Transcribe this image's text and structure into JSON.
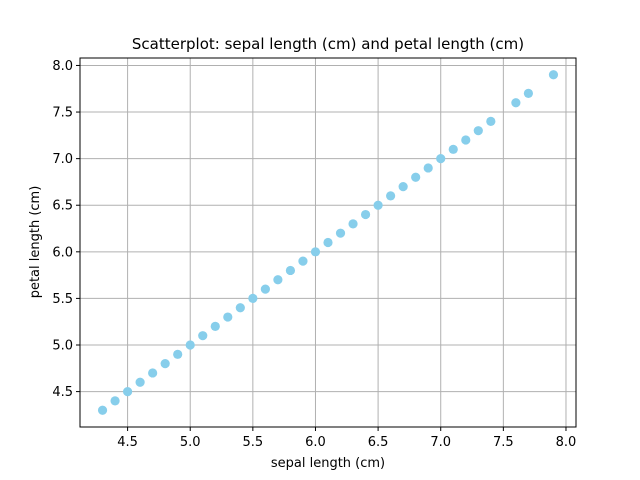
{
  "chart_data": {
    "type": "scatter",
    "title": "Scatterplot: sepal length (cm) and petal length (cm)",
    "xlabel": "sepal length (cm)",
    "ylabel": "petal length (cm)",
    "xlim": [
      4.12,
      8.08
    ],
    "ylim": [
      4.12,
      8.08
    ],
    "x_ticks": [
      4.5,
      5.0,
      5.5,
      6.0,
      6.5,
      7.0,
      7.5,
      8.0
    ],
    "y_ticks": [
      4.5,
      5.0,
      5.5,
      6.0,
      6.5,
      7.0,
      7.5,
      8.0
    ],
    "x_tick_labels": [
      "4.5",
      "5.0",
      "5.5",
      "6.0",
      "6.5",
      "7.0",
      "7.5",
      "8.0"
    ],
    "y_tick_labels": [
      "4.5",
      "5.0",
      "5.5",
      "6.0",
      "6.5",
      "7.0",
      "7.5",
      "8.0"
    ],
    "grid": true,
    "marker_color": "#87ceeb",
    "points": [
      {
        "x": 4.3,
        "y": 4.3
      },
      {
        "x": 4.4,
        "y": 4.4
      },
      {
        "x": 4.5,
        "y": 4.5
      },
      {
        "x": 4.6,
        "y": 4.6
      },
      {
        "x": 4.7,
        "y": 4.7
      },
      {
        "x": 4.8,
        "y": 4.8
      },
      {
        "x": 4.9,
        "y": 4.9
      },
      {
        "x": 5.0,
        "y": 5.0
      },
      {
        "x": 5.1,
        "y": 5.1
      },
      {
        "x": 5.2,
        "y": 5.2
      },
      {
        "x": 5.3,
        "y": 5.3
      },
      {
        "x": 5.4,
        "y": 5.4
      },
      {
        "x": 5.5,
        "y": 5.5
      },
      {
        "x": 5.6,
        "y": 5.6
      },
      {
        "x": 5.7,
        "y": 5.7
      },
      {
        "x": 5.8,
        "y": 5.8
      },
      {
        "x": 5.9,
        "y": 5.9
      },
      {
        "x": 6.0,
        "y": 6.0
      },
      {
        "x": 6.1,
        "y": 6.1
      },
      {
        "x": 6.2,
        "y": 6.2
      },
      {
        "x": 6.3,
        "y": 6.3
      },
      {
        "x": 6.4,
        "y": 6.4
      },
      {
        "x": 6.5,
        "y": 6.5
      },
      {
        "x": 6.6,
        "y": 6.6
      },
      {
        "x": 6.7,
        "y": 6.7
      },
      {
        "x": 6.8,
        "y": 6.8
      },
      {
        "x": 6.9,
        "y": 6.9
      },
      {
        "x": 7.0,
        "y": 7.0
      },
      {
        "x": 7.1,
        "y": 7.1
      },
      {
        "x": 7.2,
        "y": 7.2
      },
      {
        "x": 7.3,
        "y": 7.3
      },
      {
        "x": 7.4,
        "y": 7.4
      },
      {
        "x": 7.6,
        "y": 7.6
      },
      {
        "x": 7.7,
        "y": 7.7
      },
      {
        "x": 7.9,
        "y": 7.9
      }
    ]
  }
}
